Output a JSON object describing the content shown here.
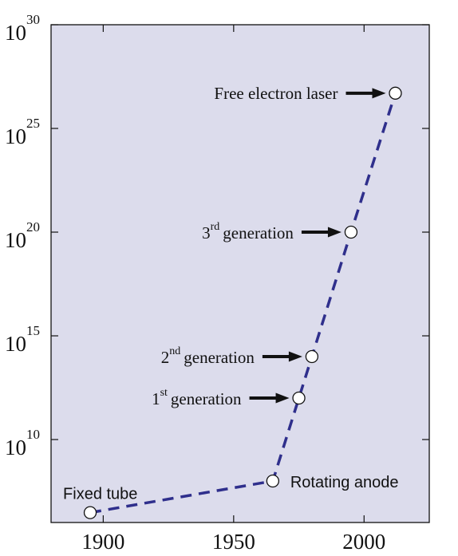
{
  "colors": {
    "plot_background": "#dcdcec",
    "line": "#2f2f8c",
    "marker_fill": "#ffffff",
    "marker_stroke": "#111111",
    "arrow": "#111111",
    "axis": "#111111"
  },
  "chart_data": {
    "type": "line",
    "title": "",
    "xlabel": "",
    "ylabel": "",
    "y_scale": "log",
    "xlim": [
      1880,
      2025
    ],
    "ylim": [
      1000000.0,
      1e+30
    ],
    "x_ticks": [
      {
        "value": 1900,
        "label": "1900"
      },
      {
        "value": 1950,
        "label": "1950"
      },
      {
        "value": 2000,
        "label": "2000"
      }
    ],
    "y_ticks": [
      {
        "value": 10000000000.0,
        "base": "10",
        "exp": "10"
      },
      {
        "value": 1000000000000000.0,
        "base": "10",
        "exp": "15"
      },
      {
        "value": 1e+20,
        "base": "10",
        "exp": "20"
      },
      {
        "value": 1e+25,
        "base": "10",
        "exp": "25"
      },
      {
        "value": 1e+30,
        "base": "10",
        "exp": "30"
      }
    ],
    "grid": false,
    "line_style": "dashed",
    "points": [
      {
        "x": 1895,
        "y": 3000000.0,
        "label": "Fixed tube",
        "annotation": "text-left-above"
      },
      {
        "x": 1965,
        "y": 100000000.0,
        "label": "Rotating anode",
        "annotation": "text-right"
      },
      {
        "x": 1975,
        "y": 1000000000000.0,
        "label": "generation",
        "prefix": "1",
        "sup": "st",
        "annotation": "arrow-left"
      },
      {
        "x": 1980,
        "y": 100000000000000.0,
        "label": "generation",
        "prefix": "2",
        "sup": "nd",
        "annotation": "arrow-left"
      },
      {
        "x": 1995,
        "y": 1e+20,
        "label": "generation",
        "prefix": "3",
        "sup": "rd",
        "annotation": "arrow-left"
      },
      {
        "x": 2012,
        "y": 5e+26,
        "label": "Free electron laser",
        "annotation": "arrow-left"
      }
    ]
  }
}
